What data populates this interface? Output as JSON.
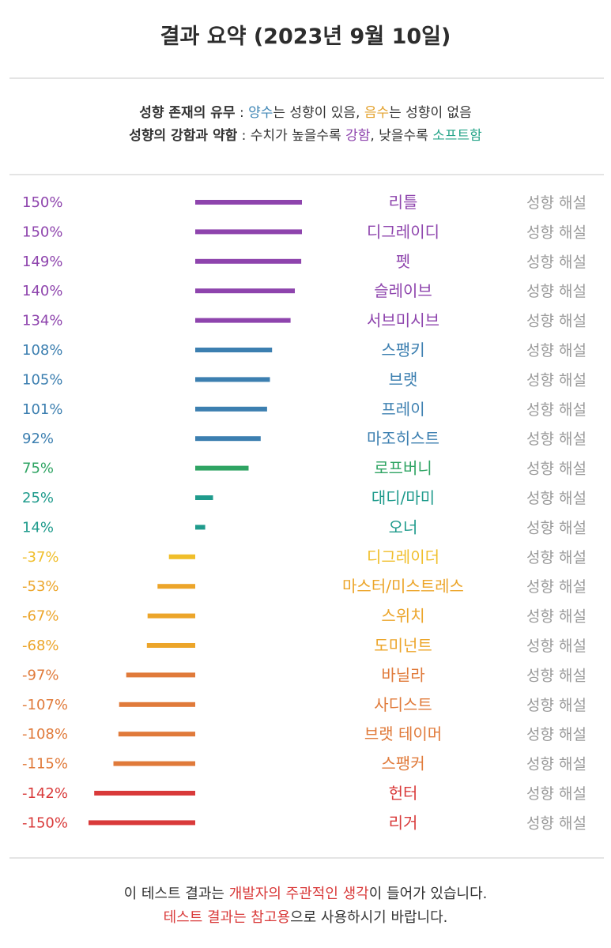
{
  "title": "결과 요약 (2023년 9월 10일)",
  "legend": {
    "line1": {
      "label": "성향 존재의 유무",
      "sep": " : ",
      "positive": "양수",
      "positive_desc": "는 성향이 있음, ",
      "negative": "음수",
      "negative_desc": "는 성향이 없음"
    },
    "line2": {
      "label": "성향의 강함과 약함",
      "sep": " : ",
      "text_before": "수치가 높을수록 ",
      "strong": "강함",
      "text_middle": ", 낮을수록 ",
      "soft": "소프트함"
    }
  },
  "detail_label": "성향 해설",
  "footer": {
    "line1_before": "이 테스트 결과는 ",
    "line1_highlight": "개발자의 주관적인 생각",
    "line1_after": "이 들어가 있습니다.",
    "line2_highlight1": "테스트 결과는 ",
    "line2_highlight2": "참고용",
    "line2_after": "으로 사용하시기 바랍니다."
  },
  "colors": {
    "positive_text": "#3f86b5",
    "negative_text": "#e3a02a",
    "strong_text": "#8e44ad",
    "soft_text": "#27a58a",
    "footer_red": "#d93a3a",
    "detail_gray": "#9a9a9a"
  },
  "chart_data": {
    "type": "bar",
    "orientation": "horizontal",
    "unit": "%",
    "xlim": [
      -150,
      150
    ],
    "categories": [
      "리틀",
      "디그레이디",
      "펫",
      "슬레이브",
      "서브미시브",
      "스팽키",
      "브랫",
      "프레이",
      "마조히스트",
      "로프버니",
      "대디/마미",
      "오너",
      "디그레이더",
      "마스터/미스트레스",
      "스위치",
      "도미넌트",
      "바닐라",
      "사디스트",
      "브랫 테이머",
      "스팽커",
      "헌터",
      "리거"
    ],
    "values": [
      150,
      150,
      149,
      140,
      134,
      108,
      105,
      101,
      92,
      75,
      25,
      14,
      -37,
      -53,
      -67,
      -68,
      -97,
      -107,
      -108,
      -115,
      -142,
      -150
    ],
    "labels": [
      "150%",
      "150%",
      "149%",
      "140%",
      "134%",
      "108%",
      "105%",
      "101%",
      "92%",
      "75%",
      "25%",
      "14%",
      "-37%",
      "-53%",
      "-67%",
      "-68%",
      "-97%",
      "-107%",
      "-108%",
      "-115%",
      "-142%",
      "-150%"
    ],
    "colors": [
      "#8e44ad",
      "#8e44ad",
      "#8e44ad",
      "#8e44ad",
      "#8e44ad",
      "#3c7fb0",
      "#3c7fb0",
      "#3c7fb0",
      "#3c7fb0",
      "#2fa463",
      "#1f9b8c",
      "#1f9b8c",
      "#f0be2a",
      "#eca52a",
      "#eca52a",
      "#eca52a",
      "#e07a3a",
      "#e07a3a",
      "#e07a3a",
      "#e07a3a",
      "#d93a3a",
      "#d93a3a"
    ]
  }
}
